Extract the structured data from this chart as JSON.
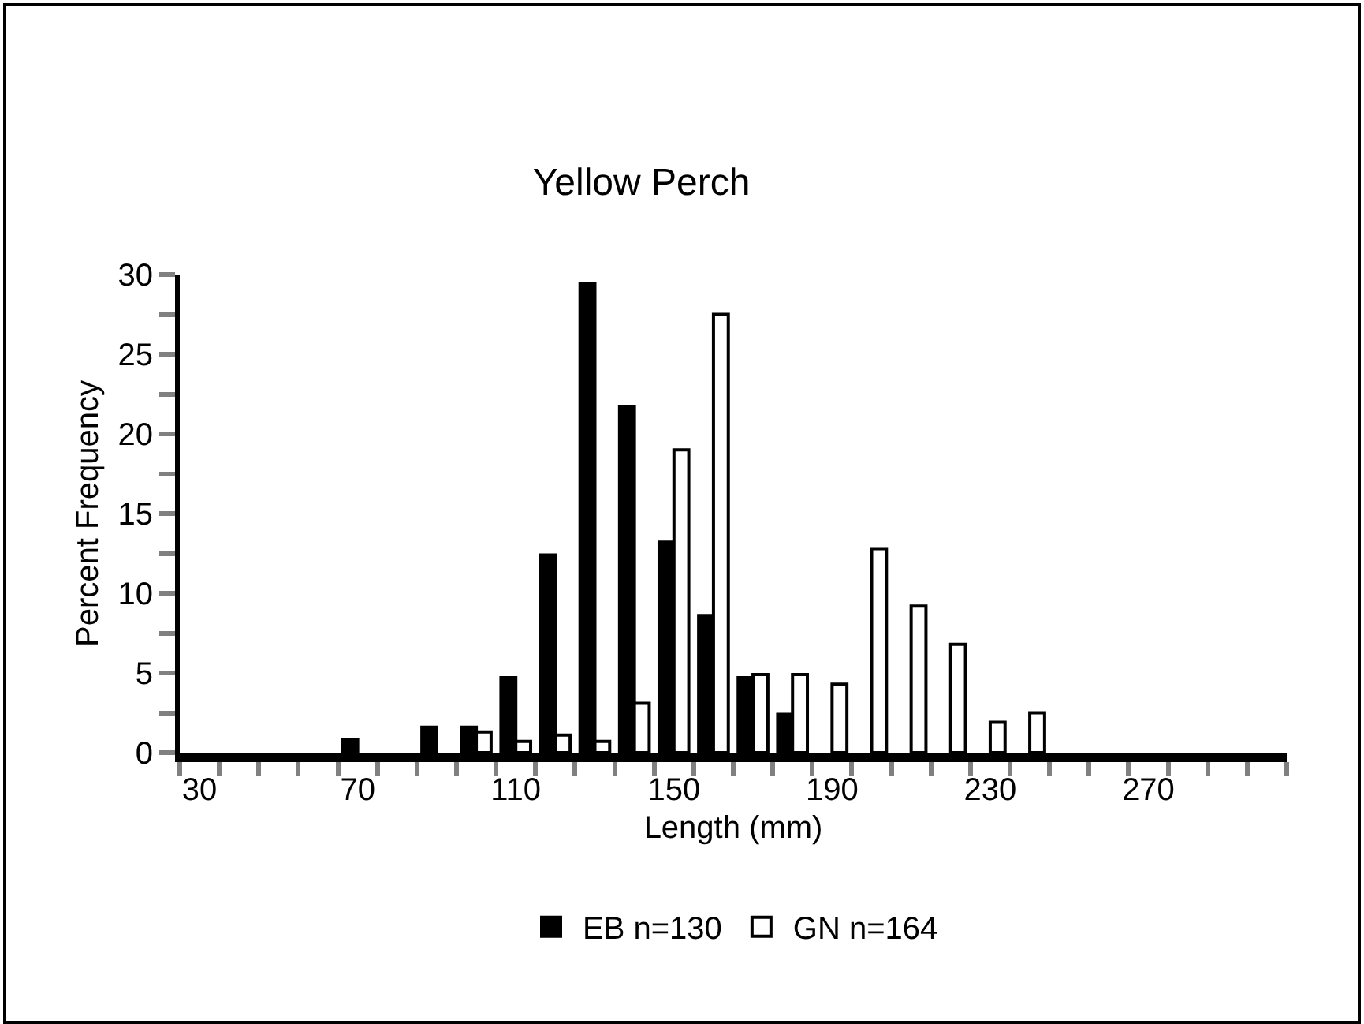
{
  "chart_data": {
    "type": "bar",
    "title": "Yellow Perch",
    "xlabel": "Length (mm)",
    "ylabel": "Percent Frequency",
    "categories": [
      "30",
      null,
      null,
      null,
      "70",
      null,
      null,
      null,
      "110",
      null,
      null,
      null,
      "150",
      null,
      null,
      null,
      "190",
      null,
      null,
      null,
      "230",
      null,
      null,
      null,
      "270",
      null,
      null,
      null
    ],
    "series": [
      {
        "name": "EB n=130",
        "color": "#000000",
        "values": [
          0,
          0,
          0,
          0,
          0.8,
          0,
          1.6,
          1.6,
          4.7,
          12.4,
          29.4,
          21.7,
          13.2,
          8.6,
          4.7,
          2.4,
          0,
          0,
          0,
          0,
          0,
          0,
          0,
          0,
          0,
          0,
          0,
          0
        ]
      },
      {
        "name": "GN n=164",
        "color": "#ffffff",
        "values": [
          0,
          0,
          0,
          0,
          0,
          0,
          0,
          1.3,
          0.7,
          1.1,
          0.7,
          3.1,
          19.0,
          27.5,
          4.9,
          4.9,
          4.3,
          12.8,
          9.2,
          6.8,
          1.9,
          2.5,
          0,
          0,
          0,
          0,
          0,
          0
        ]
      }
    ],
    "ylim": [
      0,
      30
    ],
    "yticks": [
      0,
      5,
      10,
      15,
      20,
      25,
      30
    ],
    "legend": "bottom",
    "grid": false
  }
}
